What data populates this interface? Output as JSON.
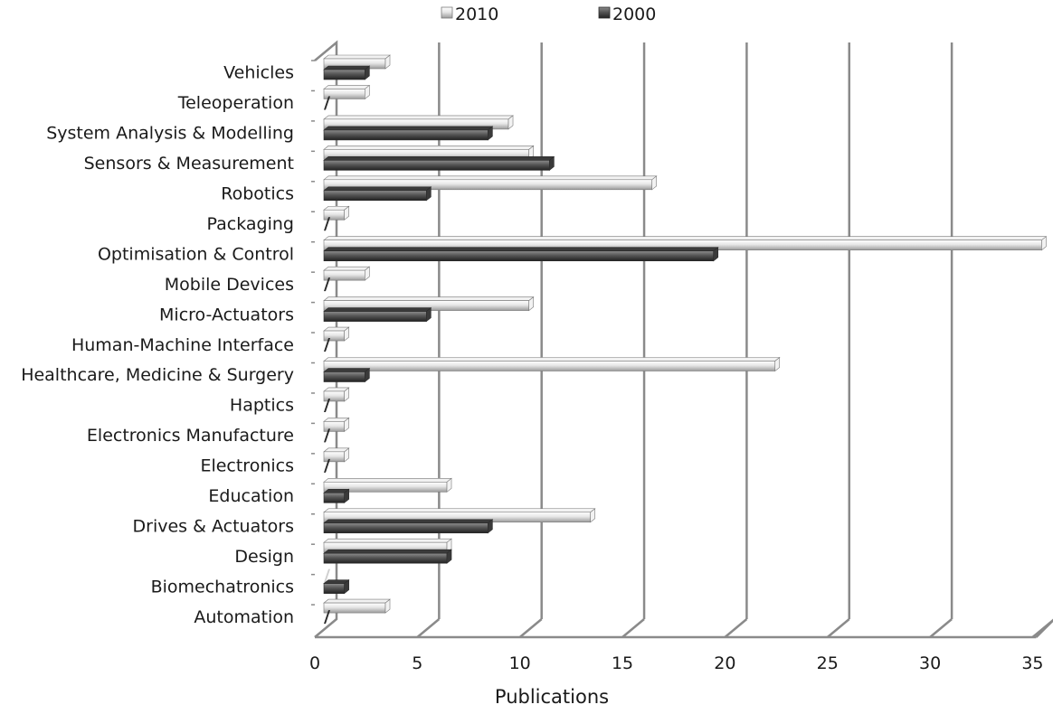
{
  "chart_data": {
    "type": "bar",
    "orientation": "horizontal",
    "title": "",
    "xlabel": "Publications",
    "ylabel": "",
    "xlim": [
      0,
      35
    ],
    "xticks": [
      0,
      5,
      10,
      15,
      20,
      25,
      30,
      35
    ],
    "grid": true,
    "legend_position": "top",
    "categories": [
      "Vehicles",
      "Teleoperation",
      "System Analysis & Modelling",
      "Sensors & Measurement",
      "Robotics",
      "Packaging",
      "Optimisation & Control",
      "Mobile Devices",
      "Micro-Actuators",
      "Human-Machine Interface",
      "Healthcare, Medicine & Surgery",
      "Haptics",
      "Electronics Manufacture",
      "Electronics",
      "Education",
      "Drives & Actuators",
      "Design",
      "Biomechatronics",
      "Automation"
    ],
    "series": [
      {
        "name": "2010",
        "color": "#d9d9d9",
        "values": [
          3,
          2,
          9,
          10,
          16,
          1,
          35,
          2,
          10,
          1,
          22,
          1,
          1,
          1,
          6,
          13,
          6,
          0,
          3
        ]
      },
      {
        "name": "2000",
        "color": "#595959",
        "values": [
          2,
          0,
          8,
          11,
          5,
          0,
          19,
          0,
          5,
          0,
          2,
          0,
          0,
          0,
          1,
          8,
          6,
          1,
          0
        ]
      }
    ]
  }
}
